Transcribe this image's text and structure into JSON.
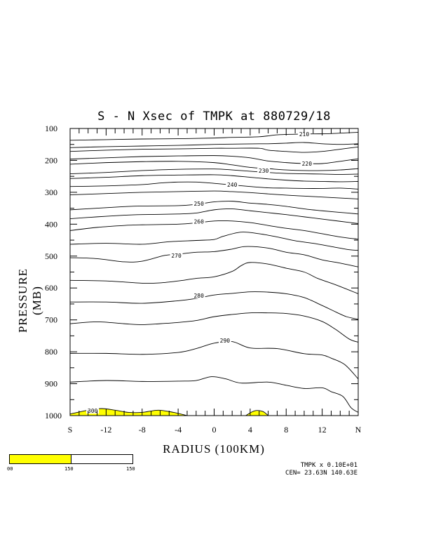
{
  "title": "S - N Xsec of TMPK at 880729/18",
  "xlabel": "RADIUS (100KM)",
  "ylabel": "PRESSURE (MB)",
  "info": {
    "line1": "TMPK x  0.10E+01",
    "line2": "CEN= 23.63N  140.63E"
  },
  "colorbar": {
    "labels": [
      "00",
      "150",
      "150"
    ],
    "colors": [
      "#ffff00",
      "#ffffff"
    ]
  },
  "chart_data": {
    "type": "contour",
    "variable": "TMPK",
    "x_ticks": [
      "S",
      "-12",
      "-8",
      "-4",
      "0",
      "4",
      "8",
      "12",
      "N"
    ],
    "x_range": [
      -16,
      16
    ],
    "y_ticks": [
      "100",
      "200",
      "300",
      "400",
      "500",
      "600",
      "700",
      "800",
      "900",
      "1000"
    ],
    "y_range": [
      100,
      1000
    ],
    "shade_color": "#ffff00",
    "shade_threshold": 300,
    "contour_labels": [
      {
        "label": "210",
        "x": 10,
        "y": 118
      },
      {
        "label": "220",
        "x": 10.3,
        "y": 210
      },
      {
        "label": "230",
        "x": 5.5,
        "y": 232
      },
      {
        "label": "240",
        "x": 2,
        "y": 276
      },
      {
        "label": "250",
        "x": -1.7,
        "y": 336
      },
      {
        "label": "260",
        "x": -1.7,
        "y": 392
      },
      {
        "label": "270",
        "x": -4.2,
        "y": 498
      },
      {
        "label": "280",
        "x": -1.7,
        "y": 624
      },
      {
        "label": "290",
        "x": 1.2,
        "y": 765
      },
      {
        "label": "300",
        "x": -13.5,
        "y": 985
      }
    ],
    "contours": [
      {
        "level": 300,
        "pts": [
          [
            -16,
            995
          ],
          [
            -14,
            983
          ],
          [
            -12.5,
            978
          ],
          [
            -11,
            983
          ],
          [
            -9.5,
            990
          ],
          [
            -8,
            990
          ],
          [
            -6.2,
            983
          ],
          [
            -4.5,
            990
          ],
          [
            -3,
            1000
          ]
        ]
      },
      {
        "level": 300,
        "pts": [
          [
            3.5,
            1000
          ],
          [
            4.5,
            985
          ],
          [
            5.4,
            987
          ],
          [
            6,
            1000
          ]
        ]
      },
      {
        "level": 290,
        "pts": [
          [
            -16,
            895
          ],
          [
            -12,
            890
          ],
          [
            -8,
            893
          ],
          [
            -4,
            892
          ],
          [
            -2,
            890
          ],
          [
            -0.3,
            878
          ],
          [
            1.3,
            885
          ],
          [
            3,
            898
          ],
          [
            6,
            895
          ],
          [
            8,
            905
          ],
          [
            10,
            915
          ],
          [
            12,
            913
          ],
          [
            13,
            925
          ],
          [
            14.3,
            940
          ],
          [
            15.2,
            975
          ],
          [
            16,
            990
          ]
        ]
      },
      {
        "level": 290,
        "pts": [
          [
            -16,
            805
          ],
          [
            -12,
            805
          ],
          [
            -8,
            808
          ],
          [
            -4,
            802
          ],
          [
            -2,
            790
          ],
          [
            0,
            773
          ],
          [
            2,
            768
          ],
          [
            4,
            788
          ],
          [
            7,
            790
          ],
          [
            10,
            806
          ],
          [
            12,
            810
          ],
          [
            13,
            820
          ],
          [
            14.5,
            840
          ],
          [
            16,
            885
          ]
        ]
      },
      {
        "level": 280,
        "pts": [
          [
            -16,
            712
          ],
          [
            -13,
            706
          ],
          [
            -10,
            712
          ],
          [
            -8,
            715
          ],
          [
            -6,
            712
          ],
          [
            -4,
            708
          ],
          [
            -2,
            702
          ],
          [
            0,
            690
          ],
          [
            2,
            683
          ],
          [
            4,
            678
          ],
          [
            6,
            678
          ],
          [
            8,
            680
          ],
          [
            10,
            688
          ],
          [
            12,
            705
          ],
          [
            13.5,
            730
          ],
          [
            15,
            760
          ],
          [
            16,
            770
          ]
        ]
      },
      {
        "level": 280,
        "pts": [
          [
            -16,
            644
          ],
          [
            -12,
            644
          ],
          [
            -8,
            648
          ],
          [
            -4,
            640
          ],
          [
            -2,
            633
          ],
          [
            0,
            622
          ],
          [
            2,
            617
          ],
          [
            4,
            612
          ],
          [
            6,
            613
          ],
          [
            8,
            618
          ],
          [
            10,
            630
          ],
          [
            12,
            655
          ],
          [
            13.5,
            675
          ],
          [
            14.7,
            690
          ],
          [
            16,
            698
          ]
        ]
      },
      {
        "level": 270,
        "pts": [
          [
            -16,
            576
          ],
          [
            -12,
            578
          ],
          [
            -8,
            585
          ],
          [
            -6,
            584
          ],
          [
            -4,
            578
          ],
          [
            -2,
            570
          ],
          [
            0,
            565
          ],
          [
            2,
            548
          ],
          [
            3,
            530
          ],
          [
            4,
            520
          ],
          [
            6,
            525
          ],
          [
            8,
            538
          ],
          [
            10,
            550
          ],
          [
            11.5,
            570
          ],
          [
            13.5,
            590
          ],
          [
            16,
            618
          ]
        ]
      },
      {
        "level": 270,
        "pts": [
          [
            -16,
            505
          ],
          [
            -13,
            508
          ],
          [
            -10,
            518
          ],
          [
            -8,
            516
          ],
          [
            -5.5,
            498
          ],
          [
            -4,
            494
          ],
          [
            -2,
            488
          ],
          [
            0,
            486
          ],
          [
            2,
            478
          ],
          [
            3.5,
            470
          ],
          [
            6,
            475
          ],
          [
            8,
            488
          ],
          [
            10,
            496
          ],
          [
            12,
            512
          ],
          [
            14,
            522
          ],
          [
            16,
            534
          ]
        ]
      },
      {
        "level": 260,
        "pts": [
          [
            -16,
            463
          ],
          [
            -12,
            460
          ],
          [
            -8,
            463
          ],
          [
            -5,
            455
          ],
          [
            -2,
            451
          ],
          [
            0,
            448
          ],
          [
            1,
            438
          ],
          [
            3,
            425
          ],
          [
            5,
            430
          ],
          [
            7,
            440
          ],
          [
            9,
            452
          ],
          [
            11,
            460
          ],
          [
            13,
            470
          ],
          [
            15,
            480
          ],
          [
            16,
            482
          ]
        ]
      },
      {
        "level": 260,
        "pts": [
          [
            -16,
            420
          ],
          [
            -13,
            410
          ],
          [
            -10,
            404
          ],
          [
            -8,
            402
          ],
          [
            -4,
            400
          ],
          [
            -2,
            396
          ],
          [
            0,
            390
          ],
          [
            2,
            390
          ],
          [
            4,
            395
          ],
          [
            6,
            404
          ],
          [
            8,
            413
          ],
          [
            10,
            420
          ],
          [
            12,
            430
          ],
          [
            14,
            440
          ],
          [
            16,
            447
          ]
        ]
      },
      {
        "level": 250,
        "pts": [
          [
            -16,
            383
          ],
          [
            -13,
            377
          ],
          [
            -10,
            372
          ],
          [
            -8,
            370
          ],
          [
            -4,
            368
          ],
          [
            -2,
            365
          ],
          [
            0,
            355
          ],
          [
            2,
            352
          ],
          [
            4,
            358
          ],
          [
            6,
            364
          ],
          [
            8,
            370
          ],
          [
            10,
            377
          ],
          [
            12,
            384
          ],
          [
            14,
            391
          ],
          [
            16,
            398
          ]
        ]
      },
      {
        "level": 250,
        "pts": [
          [
            -16,
            355
          ],
          [
            -13,
            350
          ],
          [
            -10,
            345
          ],
          [
            -8,
            343
          ],
          [
            -4,
            342
          ],
          [
            -2,
            338
          ],
          [
            0,
            330
          ],
          [
            2,
            328
          ],
          [
            4,
            334
          ],
          [
            6,
            338
          ],
          [
            8,
            344
          ],
          [
            10,
            352
          ],
          [
            12,
            358
          ],
          [
            14,
            363
          ],
          [
            16,
            368
          ]
        ]
      },
      {
        "level": 240,
        "pts": [
          [
            -16,
            308
          ],
          [
            -13,
            305
          ],
          [
            -10,
            302
          ],
          [
            -8,
            300
          ],
          [
            -4,
            298
          ],
          [
            0,
            296
          ],
          [
            2,
            298
          ],
          [
            4,
            301
          ],
          [
            6,
            305
          ],
          [
            8,
            309
          ],
          [
            10,
            312
          ],
          [
            12,
            315
          ],
          [
            14,
            318
          ],
          [
            16,
            321
          ]
        ]
      },
      {
        "level": 240,
        "pts": [
          [
            -16,
            282
          ],
          [
            -12,
            280
          ],
          [
            -8,
            276
          ],
          [
            -6,
            271
          ],
          [
            -4,
            268
          ],
          [
            -2,
            268
          ],
          [
            0,
            272
          ],
          [
            2,
            277
          ],
          [
            4,
            282
          ],
          [
            6,
            286
          ],
          [
            8,
            287
          ],
          [
            10,
            288
          ],
          [
            12,
            288
          ],
          [
            14,
            287
          ],
          [
            16,
            290
          ]
        ]
      },
      {
        "level": 230,
        "pts": [
          [
            -16,
            257
          ],
          [
            -12,
            253
          ],
          [
            -8,
            248
          ],
          [
            -4,
            246
          ],
          [
            0,
            245
          ],
          [
            2,
            248
          ],
          [
            4,
            253
          ],
          [
            6,
            258
          ],
          [
            8,
            262
          ],
          [
            10,
            265
          ],
          [
            12,
            266
          ],
          [
            14,
            267
          ],
          [
            16,
            266
          ]
        ]
      },
      {
        "level": 230,
        "pts": [
          [
            -16,
            242
          ],
          [
            -12,
            238
          ],
          [
            -8,
            232
          ],
          [
            -4,
            228
          ],
          [
            0,
            227
          ],
          [
            2,
            230
          ],
          [
            4,
            234
          ],
          [
            6,
            238
          ],
          [
            8,
            241
          ],
          [
            10,
            242
          ],
          [
            12,
            243
          ],
          [
            14,
            244
          ],
          [
            16,
            243
          ]
        ]
      },
      {
        "level": 220,
        "pts": [
          [
            -16,
            212
          ],
          [
            -12,
            207
          ],
          [
            -8,
            204
          ],
          [
            -4,
            203
          ],
          [
            0,
            207
          ],
          [
            2,
            214
          ],
          [
            4,
            222
          ],
          [
            6,
            226
          ],
          [
            8,
            230
          ],
          [
            10,
            232
          ],
          [
            12,
            232
          ],
          [
            14,
            230
          ],
          [
            16,
            226
          ]
        ]
      },
      {
        "level": 220,
        "pts": [
          [
            -16,
            196
          ],
          [
            -12,
            192
          ],
          [
            -8,
            188
          ],
          [
            -4,
            186
          ],
          [
            0,
            185
          ],
          [
            2,
            187
          ],
          [
            4,
            192
          ],
          [
            6,
            202
          ],
          [
            8,
            207
          ],
          [
            10,
            210
          ],
          [
            12,
            210
          ],
          [
            14,
            203
          ],
          [
            16,
            195
          ]
        ]
      },
      {
        "level": 210,
        "pts": [
          [
            -16,
            172
          ],
          [
            -12,
            168
          ],
          [
            -8,
            165
          ],
          [
            -4,
            164
          ],
          [
            0,
            162
          ],
          [
            2,
            162
          ],
          [
            5,
            162
          ],
          [
            6,
            168
          ],
          [
            8,
            172
          ],
          [
            10,
            175
          ],
          [
            12,
            172
          ],
          [
            14,
            165
          ],
          [
            16,
            158
          ]
        ]
      },
      {
        "level": 210,
        "pts": [
          [
            -16,
            160
          ],
          [
            -12,
            157
          ],
          [
            -8,
            155
          ],
          [
            -4,
            153
          ],
          [
            0,
            150
          ],
          [
            2,
            149
          ],
          [
            5,
            148
          ],
          [
            6,
            148
          ],
          [
            8,
            146
          ],
          [
            10,
            144
          ],
          [
            12,
            148
          ],
          [
            14,
            150
          ],
          [
            16,
            148
          ]
        ]
      },
      {
        "level": 210,
        "pts": [
          [
            -16,
            137
          ],
          [
            -12,
            135
          ],
          [
            -8,
            133
          ],
          [
            -4,
            132
          ],
          [
            0,
            130
          ],
          [
            2,
            128
          ],
          [
            5,
            126
          ],
          [
            7,
            120
          ],
          [
            9,
            118
          ],
          [
            11,
            117
          ],
          [
            13,
            116
          ],
          [
            16,
            112
          ]
        ]
      }
    ]
  }
}
